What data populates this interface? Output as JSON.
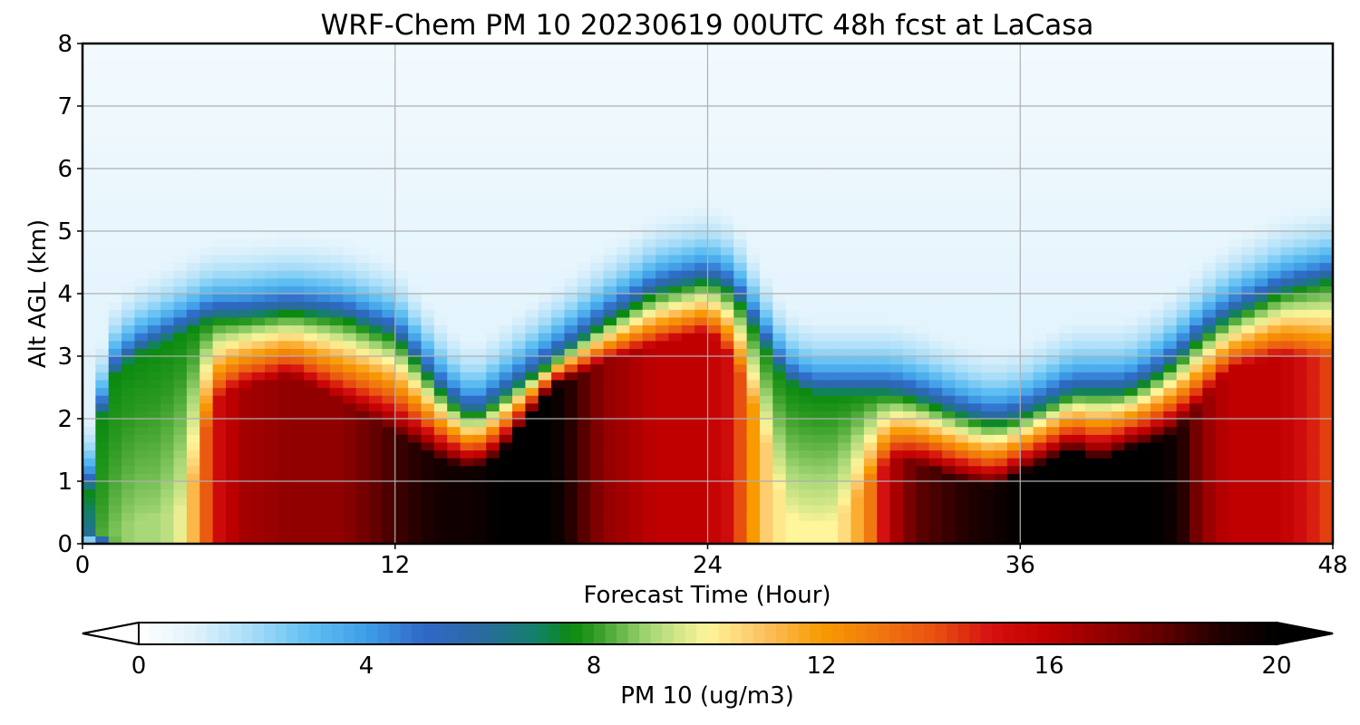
{
  "chart_data": {
    "type": "heatmap",
    "title": "WRF-Chem PM 10  20230619 00UTC 48h fcst at LaCasa",
    "xlabel": "Forecast Time (Hour)",
    "ylabel": "Alt AGL (km)",
    "xlim": [
      0,
      48
    ],
    "ylim": [
      0,
      8
    ],
    "x_ticks": [
      "0",
      "12",
      "24",
      "36",
      "48"
    ],
    "y_ticks": [
      "0",
      "1",
      "2",
      "3",
      "4",
      "5",
      "6",
      "7",
      "8"
    ],
    "grid": true,
    "colorbar": {
      "label": "PM 10  (ug/m3)",
      "range": [
        0,
        20
      ],
      "ticks": [
        "0",
        "4",
        "8",
        "12",
        "16",
        "20"
      ],
      "extend": "both",
      "colormap": [
        [
          0,
          "#ffffff"
        ],
        [
          1,
          "#dff2fc"
        ],
        [
          2,
          "#a6dcf7"
        ],
        [
          3,
          "#60bff2"
        ],
        [
          4,
          "#3f9ee6"
        ],
        [
          5,
          "#2f68c8"
        ],
        [
          6,
          "#2a6aa0"
        ],
        [
          7,
          "#14806a"
        ],
        [
          7.6,
          "#0a8a10"
        ],
        [
          8,
          "#2e9a22"
        ],
        [
          9,
          "#a8d878"
        ],
        [
          10,
          "#fff59b"
        ],
        [
          11,
          "#fcc060"
        ],
        [
          12,
          "#f89a00"
        ],
        [
          13,
          "#f07810"
        ],
        [
          14,
          "#e85010"
        ],
        [
          15,
          "#d41010"
        ],
        [
          16,
          "#c00000"
        ],
        [
          17,
          "#900000"
        ],
        [
          18,
          "#600000"
        ],
        [
          19,
          "#200000"
        ],
        [
          20,
          "#000000"
        ]
      ]
    },
    "field_profile": {
      "description_units": "per forecast hour: top of polluted layer (km), layer-top sharpness, surface-layer peak value (ug/m3)",
      "hour": [
        0,
        0.5,
        1,
        2,
        3,
        4,
        5,
        6,
        8,
        10,
        12,
        14,
        15,
        16,
        18,
        20,
        22,
        24,
        25,
        26,
        27,
        28,
        29,
        30,
        31,
        32,
        34,
        35,
        36,
        37,
        38,
        39,
        40,
        41,
        42,
        43,
        44,
        46,
        48
      ],
      "layer_top_km": [
        0.2,
        1.5,
        2.6,
        3.0,
        3.2,
        3.4,
        3.6,
        3.6,
        3.7,
        3.6,
        3.3,
        2.3,
        2.0,
        2.3,
        2.9,
        3.5,
        4.0,
        4.2,
        4.0,
        3.3,
        2.6,
        2.4,
        2.4,
        2.4,
        2.4,
        2.3,
        2.0,
        1.9,
        2.0,
        2.2,
        2.4,
        2.4,
        2.4,
        2.6,
        2.9,
        3.3,
        3.6,
        4.0,
        4.2
      ],
      "peak_value": [
        4,
        8,
        8.5,
        9,
        9,
        10,
        15,
        16.5,
        17,
        17,
        18.5,
        19.5,
        19.5,
        20,
        20,
        17,
        16,
        16,
        15,
        11,
        10,
        10,
        10,
        12,
        16,
        18,
        19,
        19.5,
        20,
        20,
        20,
        20,
        20,
        20,
        19.5,
        17,
        16,
        16,
        14
      ],
      "core_top_km": [
        0.05,
        0.15,
        0.25,
        0.4,
        0.45,
        0.6,
        2.3,
        2.5,
        2.7,
        2.3,
        1.8,
        1.3,
        1.2,
        1.4,
        2.5,
        2.9,
        3.2,
        3.4,
        3.0,
        2.0,
        0.5,
        0.3,
        0.4,
        0.9,
        1.4,
        1.3,
        1.0,
        0.9,
        1.1,
        1.3,
        1.5,
        1.3,
        1.5,
        1.6,
        1.8,
        2.3,
        2.8,
        3.0,
        3.0
      ]
    }
  }
}
